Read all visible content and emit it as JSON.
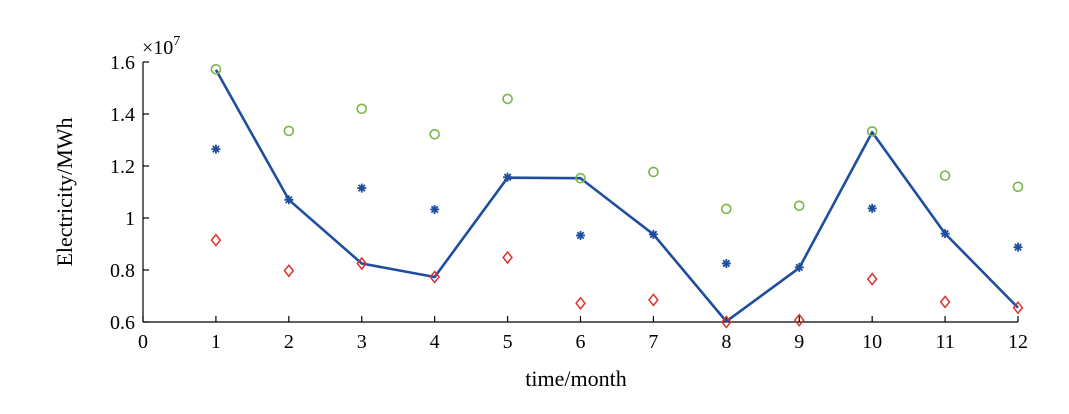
{
  "chart_data": {
    "type": "line",
    "title": "",
    "xlabel": "time/month",
    "ylabel": "Electricity/MWh",
    "y_multiplier": "×10",
    "y_multiplier_exponent": "7",
    "xlim": [
      0,
      12
    ],
    "ylim": [
      0.6,
      1.6
    ],
    "x_ticks": [
      0,
      1,
      2,
      3,
      4,
      5,
      6,
      7,
      8,
      9,
      10,
      11,
      12
    ],
    "x_tick_labels": [
      "0",
      "1",
      "2",
      "3",
      "4",
      "5",
      "6",
      "7",
      "8",
      "9",
      "10",
      "11",
      "12"
    ],
    "y_ticks": [
      0.6,
      0.8,
      1.0,
      1.2,
      1.4,
      1.6
    ],
    "y_tick_labels": [
      "0.6",
      "0.8",
      "1",
      "1.2",
      "1.4",
      "1.6"
    ],
    "grid": false,
    "legend": "none",
    "x": [
      1,
      2,
      3,
      4,
      5,
      6,
      7,
      8,
      9,
      10,
      11,
      12
    ],
    "series": [
      {
        "style": "line",
        "color": "#1f4e9e",
        "values": [
          1.57,
          1.07,
          0.825,
          0.773,
          1.155,
          1.153,
          0.937,
          0.602,
          0.808,
          1.33,
          0.94,
          0.655
        ]
      },
      {
        "style": "circle",
        "color": "#7ab648",
        "values": [
          1.572,
          1.335,
          1.42,
          1.322,
          1.458,
          1.153,
          1.177,
          1.035,
          1.047,
          1.333,
          1.163,
          1.12
        ]
      },
      {
        "style": "asterisk",
        "color": "#1f4e9e",
        "values": [
          1.265,
          1.07,
          1.115,
          1.033,
          1.157,
          0.933,
          0.937,
          0.825,
          0.81,
          1.037,
          0.94,
          0.888
        ]
      },
      {
        "style": "diamond",
        "color": "#d9342b",
        "values": [
          0.915,
          0.797,
          0.825,
          0.773,
          0.848,
          0.672,
          0.685,
          0.6,
          0.607,
          0.765,
          0.677,
          0.655
        ]
      }
    ]
  }
}
